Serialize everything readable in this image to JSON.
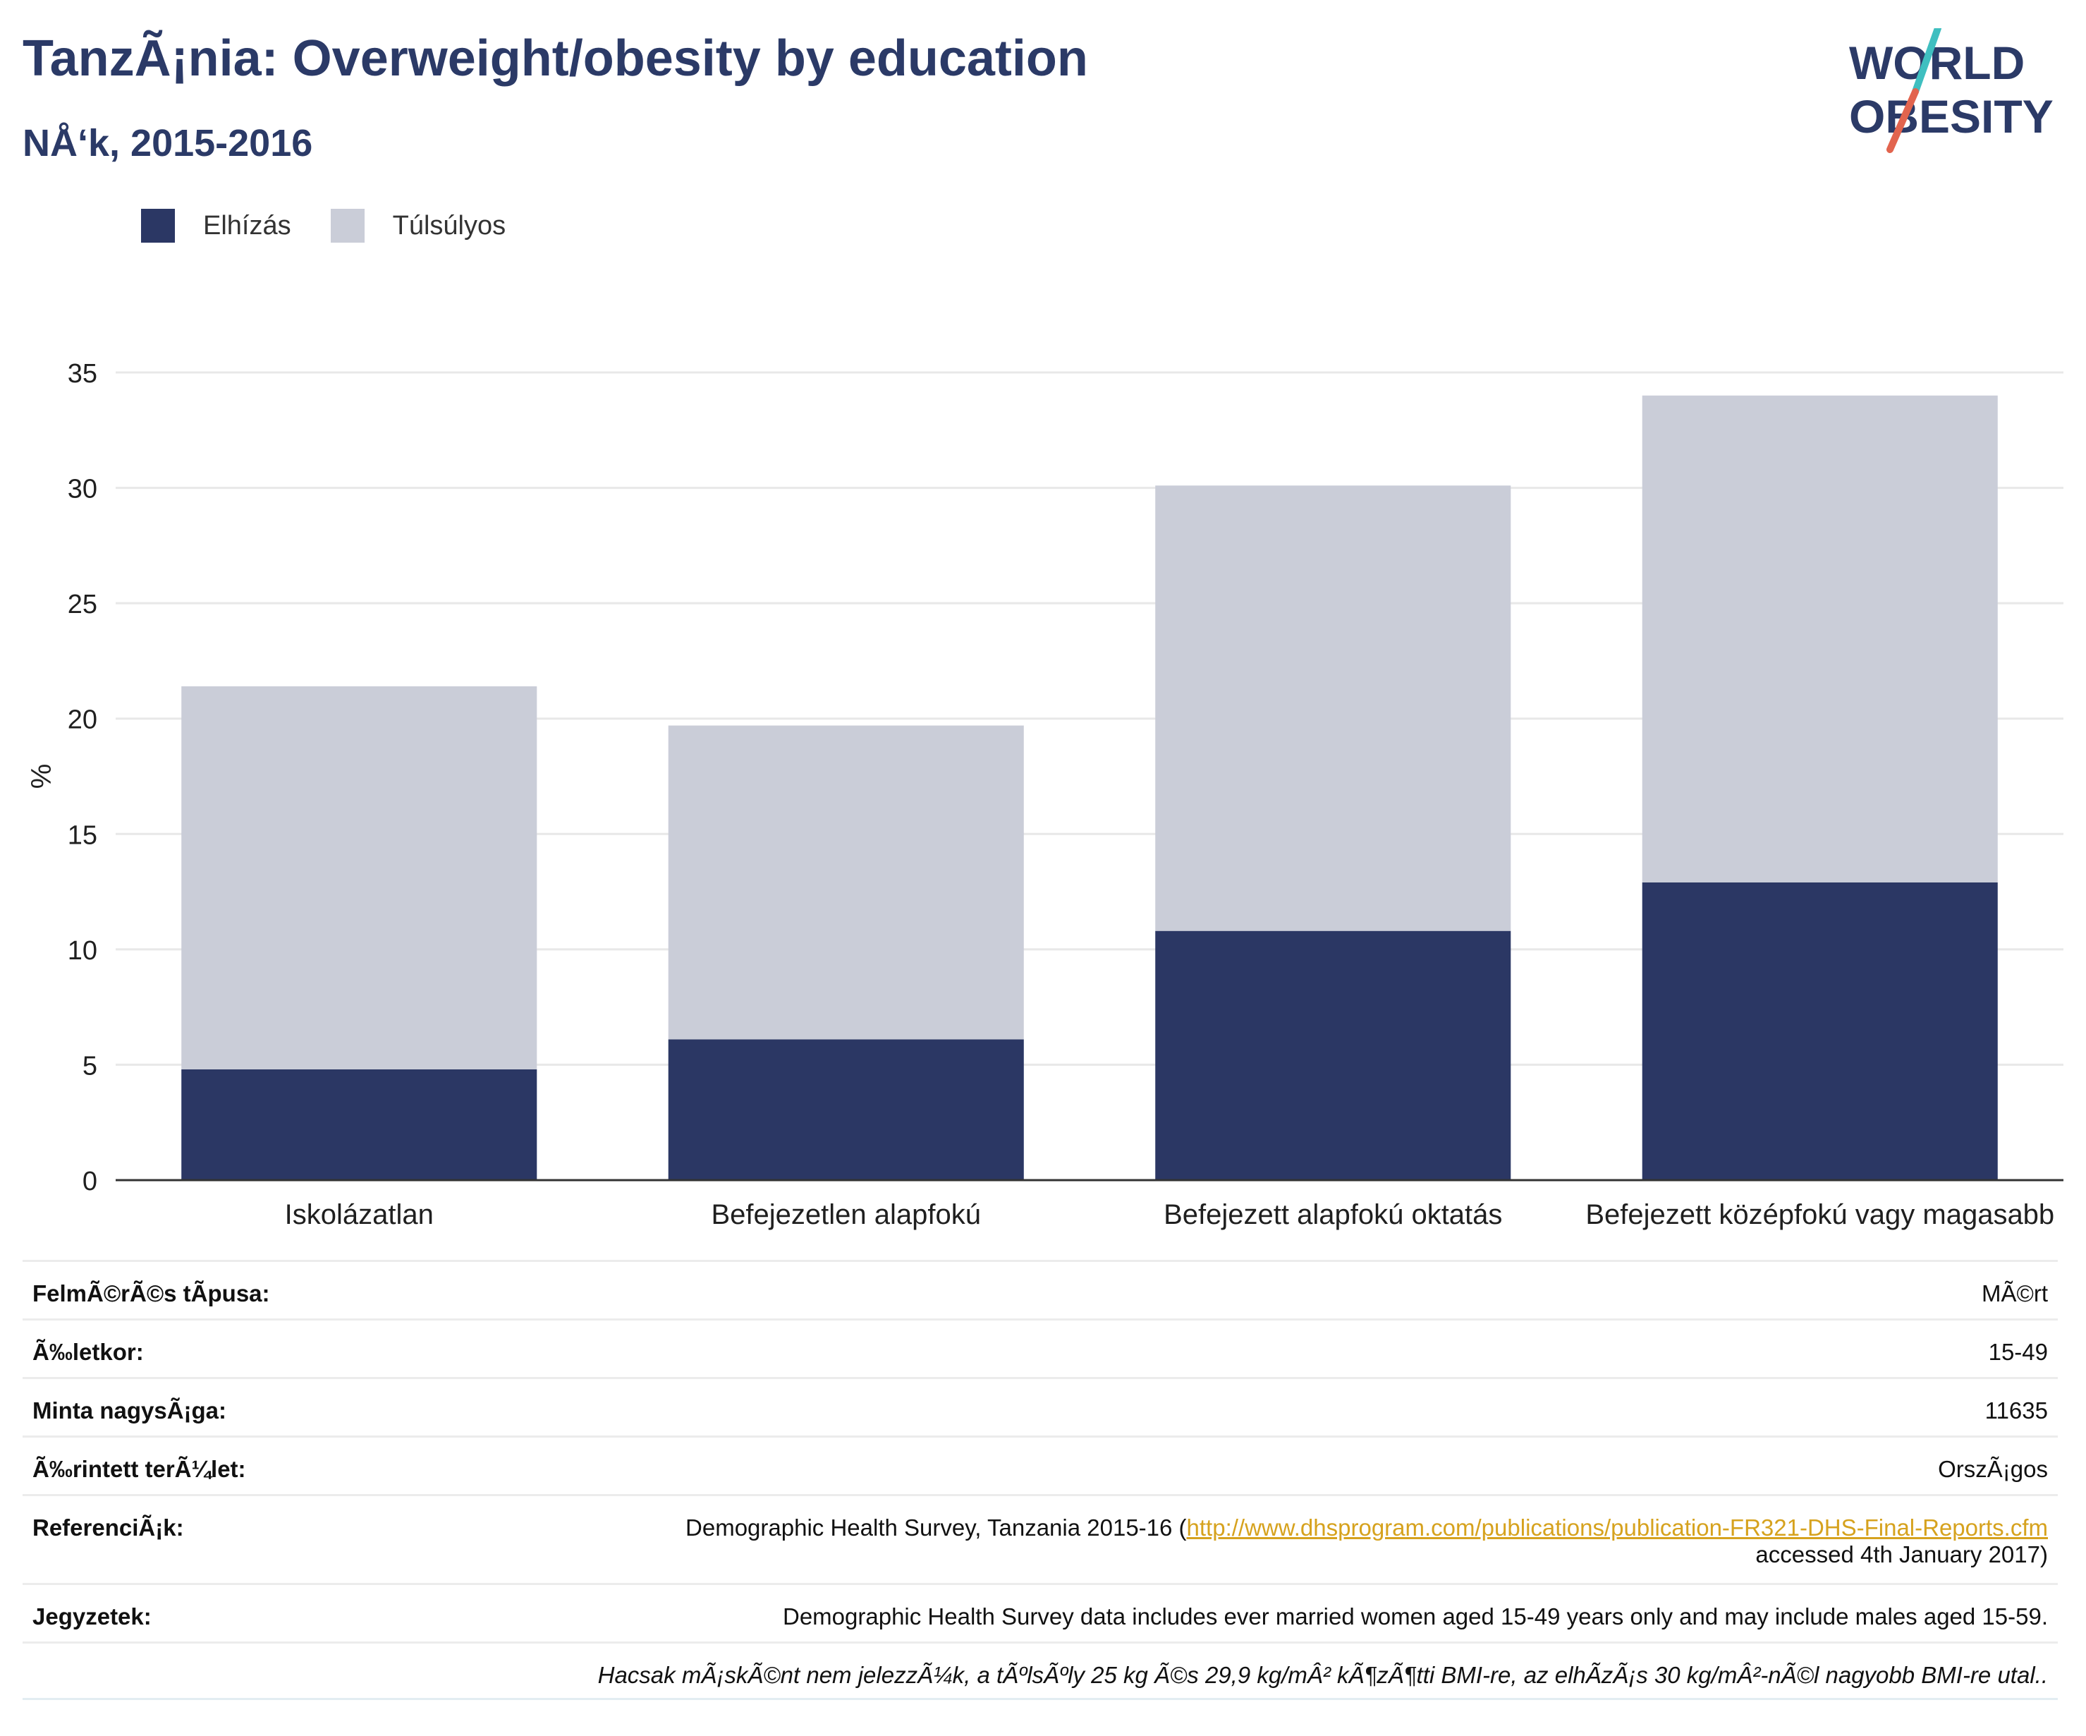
{
  "header": {
    "title": "TanzÃ¡nia: Overweight/obesity by education",
    "subtitle": "NÅ‘k, 2015-2016"
  },
  "logo": {
    "line1": "WORLD",
    "line2": "OBESITY"
  },
  "colors": {
    "obesity": "#2b3764",
    "overweight": "#cacdd8",
    "title": "#2b3a67",
    "link": "#d6a21e",
    "logo_teal": "#3fbfc0",
    "logo_red": "#e2644e"
  },
  "chart_data": {
    "type": "bar",
    "stacked": true,
    "categories": [
      "Iskolázatlan",
      "Befejezetlen alapfokú",
      "Befejezett alapfokú oktatás",
      "Befejezett középfokú vagy magasabb"
    ],
    "series": [
      {
        "name": "Elhízás",
        "values": [
          4.8,
          6.1,
          10.8,
          12.9
        ]
      },
      {
        "name": "Túlsúlyos",
        "values": [
          16.6,
          13.6,
          19.3,
          21.1
        ]
      }
    ],
    "ylabel": "%",
    "ylim": [
      0,
      35
    ],
    "yticks": [
      0,
      5,
      10,
      15,
      20,
      25,
      30,
      35
    ],
    "grid": true,
    "legend_position": "top-left"
  },
  "meta": {
    "rows": [
      {
        "key": "FelmÃ©rÃ©s tÃpusa:",
        "value": "MÃ©rt"
      },
      {
        "key": "Ã‰letkor:",
        "value": "15-49"
      },
      {
        "key": "Minta nagysÃ¡ga:",
        "value": "11635"
      },
      {
        "key": "Ã‰rintett terÃ¼let:",
        "value": "OrszÃ¡gos"
      }
    ],
    "reference": {
      "key": "ReferenciÃ¡k:",
      "prefix": "Demographic Health Survey, Tanzania 2015-16 (",
      "link": "http://www.dhsprogram.com/publications/publication-FR321-DHS-Final-Reports.cfm",
      "suffix": "accessed 4th January 2017)"
    },
    "notes": {
      "key": "Jegyzetek:",
      "value": "Demographic Health Survey data includes ever married women aged 15-49 years only and may include males aged 15-59.",
      "footnote": "Hacsak mÃ¡skÃ©nt nem jelezzÃ¼k, a tÃºlsÃºly 25 kg Ã©s 29,9 kg/mÂ² kÃ¶zÃ¶tti BMI-re, az elhÃ­zÃ¡s 30 kg/mÂ²-nÃ©l nagyobb BMI-re utal.."
    }
  }
}
